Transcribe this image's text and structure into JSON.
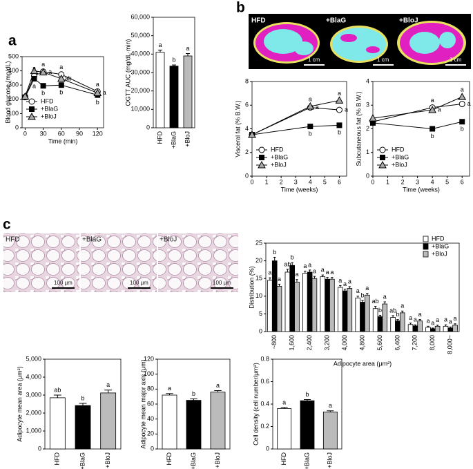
{
  "panel_labels": [
    "a",
    "b",
    "c"
  ],
  "ct_images": {
    "labels": [
      "HFD",
      "+BlaG",
      "+BloJ"
    ],
    "scale_bar": "1 cm"
  },
  "histology_images": {
    "labels": [
      "HFD",
      "+BlaG",
      "+BloJ"
    ],
    "scale_bar": "100 μm"
  },
  "chart_data": [
    {
      "type": "line",
      "x_label": "Time (min)",
      "y_label": "Blood glucose (mg/dL)",
      "x": [
        0,
        15,
        30,
        60,
        120
      ],
      "xlim": [
        -5,
        130
      ],
      "xticks": [
        0,
        30,
        60,
        90,
        120
      ],
      "ylim": [
        0,
        500
      ],
      "yticks": [
        0,
        100,
        200,
        300,
        400,
        500
      ],
      "legend": "lower left",
      "series": [
        {
          "name": "HFD",
          "marker": "circle",
          "color": "#ffffff",
          "values": [
            215,
            365,
            395,
            375,
            255
          ],
          "letters": [
            null,
            "a",
            "a",
            "a",
            "a"
          ]
        },
        {
          "name": "+BlaG",
          "marker": "square",
          "color": "#000000",
          "values": [
            215,
            345,
            295,
            300,
            230
          ],
          "letters": [
            null,
            "a",
            "b",
            "b",
            "b"
          ]
        },
        {
          "name": "+BloJ",
          "marker": "triangle",
          "color": "#aaaaaa",
          "values": [
            220,
            400,
            390,
            345,
            245
          ],
          "letters": [
            null,
            null,
            "a",
            "ab",
            "a"
          ]
        }
      ]
    },
    {
      "type": "bar",
      "y_label": "OGTT AUC (mg/dL·min)",
      "categories": [
        "HFD",
        "+BlaG",
        "+BloJ"
      ],
      "values": [
        41000,
        33500,
        39000
      ],
      "errors": [
        1200,
        600,
        1300
      ],
      "letters": [
        "a",
        "b",
        "a"
      ],
      "colors": [
        "#ffffff",
        "#000000",
        "#bbbbbb"
      ],
      "ylim": [
        0,
        60000
      ],
      "yticks": [
        0,
        {
          "value": 10000,
          "label": "10,000"
        },
        {
          "value": 20000,
          "label": "20,000"
        },
        {
          "value": 30000,
          "label": "30,000"
        },
        {
          "value": 40000,
          "label": "40,000"
        },
        {
          "value": 50000,
          "label": "50,000"
        },
        {
          "value": 60000,
          "label": "60,000"
        }
      ]
    },
    {
      "type": "line",
      "x_label": "Time (weeks)",
      "y_label": "Visceral fat (% B.W.)",
      "x": [
        0,
        4,
        6
      ],
      "xlim": [
        0,
        6.5
      ],
      "xticks": [
        0,
        1,
        2,
        3,
        4,
        5,
        6
      ],
      "ylim": [
        0,
        8
      ],
      "yticks": [
        0,
        2,
        4,
        6,
        8
      ],
      "legend": "lower left",
      "series": [
        {
          "name": "HFD",
          "marker": "circle",
          "color": "#ffffff",
          "values": [
            3.5,
            5.8,
            5.6
          ],
          "letters": [
            null,
            "a",
            "a"
          ]
        },
        {
          "name": "+BlaG",
          "marker": "square",
          "color": "#000000",
          "values": [
            3.5,
            4.2,
            4.3
          ],
          "letters": [
            null,
            "b",
            "b"
          ]
        },
        {
          "name": "+BloJ",
          "marker": "triangle",
          "color": "#aaaaaa",
          "values": [
            3.5,
            5.9,
            6.4
          ],
          "letters": [
            null,
            "a",
            "a"
          ]
        }
      ]
    },
    {
      "type": "line",
      "x_label": "Time (weeks)",
      "y_label": "Subcutaneous fat (% B.W.)",
      "x": [
        0,
        4,
        6
      ],
      "xlim": [
        0,
        6.5
      ],
      "xticks": [
        0,
        1,
        2,
        3,
        4,
        5,
        6
      ],
      "ylim": [
        0,
        4
      ],
      "yticks": [
        0,
        1,
        2,
        3,
        4
      ],
      "legend": "lower left",
      "series": [
        {
          "name": "HFD",
          "marker": "circle",
          "color": "#ffffff",
          "values": [
            2.3,
            2.9,
            3.05
          ],
          "letters": [
            null,
            "a",
            "a"
          ]
        },
        {
          "name": "+BlaG",
          "marker": "square",
          "color": "#000000",
          "values": [
            2.25,
            2.0,
            2.3
          ],
          "letters": [
            null,
            "b",
            "b"
          ]
        },
        {
          "name": "+BloJ",
          "marker": "triangle",
          "color": "#aaaaaa",
          "values": [
            2.45,
            2.8,
            3.35
          ],
          "letters": [
            null,
            "a",
            "a"
          ]
        }
      ]
    },
    {
      "type": "bar",
      "x_label": "Adipocyte area (μm²)",
      "y_label": "Distribution (%)",
      "categories": [
        "~800",
        "1,600",
        "2,400",
        "3,200",
        "4,000",
        "4,800",
        "5,600",
        "6,400",
        "7,200",
        "8,000",
        "8,000~"
      ],
      "ylim": [
        0,
        25
      ],
      "yticks": [
        0,
        5,
        10,
        15,
        20,
        25
      ],
      "legend": "upper right",
      "series": [
        {
          "name": "HFD",
          "color": "#ffffff",
          "values": [
            14.5,
            16.8,
            16.5,
            15.5,
            12.5,
            9.5,
            6.5,
            4.0,
            2.0,
            1.2,
            1.5
          ],
          "errors": [
            0.7,
            0.8,
            0.6,
            0.5,
            0.5,
            0.5,
            0.6,
            0.5,
            0.4,
            0.3,
            0.4
          ],
          "letters": [
            "a",
            "ab",
            "a",
            "a",
            "a",
            "a",
            "ab",
            "ab",
            "a",
            "a",
            "a"
          ]
        },
        {
          "name": "+BlaG",
          "color": "#000000",
          "values": [
            20.0,
            18.7,
            16.8,
            14.8,
            11.5,
            8.3,
            4.2,
            3.0,
            1.6,
            0.8,
            1.0
          ],
          "errors": [
            1.0,
            0.8,
            0.6,
            0.5,
            0.5,
            0.5,
            0.4,
            0.4,
            0.3,
            0.2,
            0.3
          ],
          "letters": [
            "b",
            "b",
            "a",
            "a",
            "a",
            "b",
            "b",
            "b",
            "a",
            "a",
            "a"
          ]
        },
        {
          "name": "+BloJ",
          "color": "#bbbbbb",
          "values": [
            12.8,
            14.0,
            15.0,
            14.8,
            12.2,
            10.3,
            7.8,
            5.3,
            3.0,
            1.5,
            1.8
          ],
          "errors": [
            0.6,
            0.7,
            0.6,
            0.5,
            0.5,
            0.5,
            0.6,
            0.5,
            0.4,
            0.3,
            0.4
          ],
          "letters": [
            "a",
            "a",
            "a",
            "a",
            "a",
            "a",
            "a",
            "a",
            "a",
            "a",
            "a"
          ]
        }
      ]
    },
    {
      "type": "bar",
      "y_label": "Adipocyte mean area (μm²)",
      "categories": [
        "HFD",
        "+BlaG",
        "+BloJ"
      ],
      "values": [
        2850,
        2420,
        3120
      ],
      "errors": [
        150,
        120,
        160
      ],
      "letters": [
        "ab",
        "b",
        "a"
      ],
      "colors": [
        "#ffffff",
        "#000000",
        "#bbbbbb"
      ],
      "ylim": [
        0,
        5000
      ],
      "yticks": [
        0,
        {
          "value": 1000,
          "label": "1,000"
        },
        {
          "value": 2000,
          "label": "2,000"
        },
        {
          "value": 3000,
          "label": "3,000"
        },
        {
          "value": 4000,
          "label": "4,000"
        },
        {
          "value": 5000,
          "label": "5,000"
        }
      ]
    },
    {
      "type": "bar",
      "y_label": "Adipocyte mean major axis (μm)",
      "categories": [
        "HFD",
        "+BlaG",
        "+BloJ"
      ],
      "values": [
        72,
        65,
        76
      ],
      "errors": [
        2,
        2,
        2
      ],
      "letters": [
        "a",
        "b",
        "a"
      ],
      "colors": [
        "#ffffff",
        "#000000",
        "#bbbbbb"
      ],
      "ylim": [
        0,
        120
      ],
      "yticks": [
        0,
        20,
        40,
        60,
        80,
        100,
        120
      ]
    },
    {
      "type": "bar",
      "y_label": "Cell density (cell number/μm²)",
      "categories": [
        "HFD",
        "+BlaG",
        "+BloJ"
      ],
      "values": [
        0.36,
        0.43,
        0.33
      ],
      "errors": [
        0.01,
        0.01,
        0.01
      ],
      "letters": [
        "a",
        "b",
        "a"
      ],
      "colors": [
        "#ffffff",
        "#000000",
        "#bbbbbb"
      ],
      "ylim": [
        0,
        0.8
      ],
      "yticks": [
        0,
        0.2,
        0.4,
        0.6,
        0.8
      ]
    }
  ]
}
